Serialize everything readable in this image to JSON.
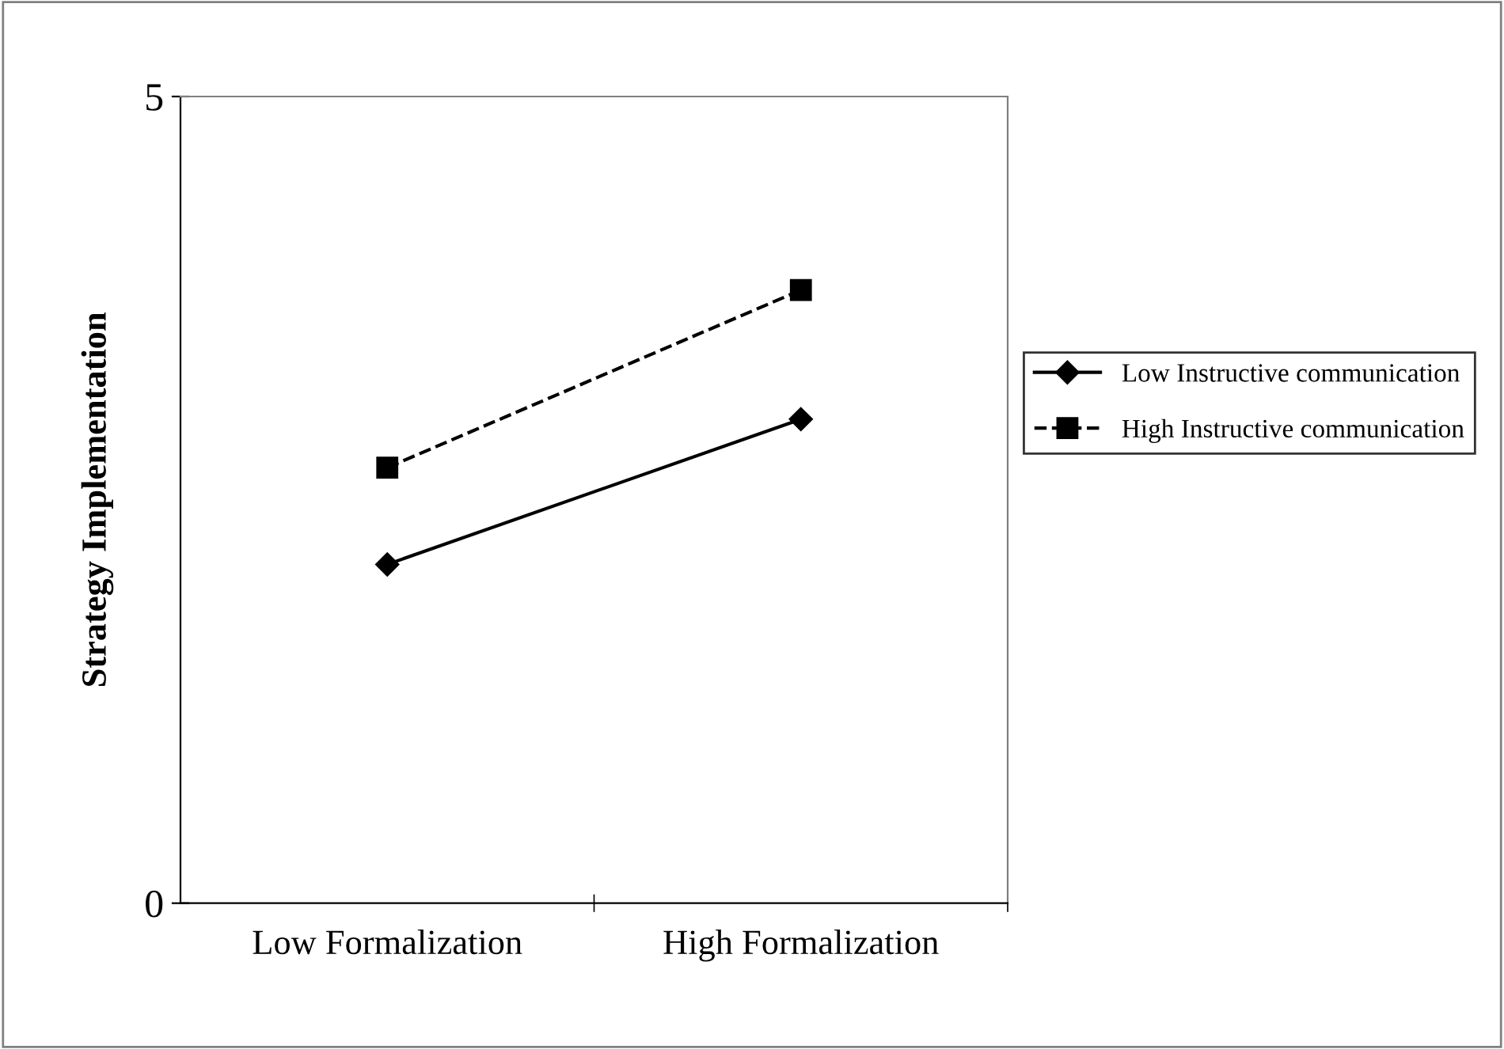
{
  "chart_data": {
    "type": "line",
    "ylabel": "Strategy Implementation",
    "categories": [
      "Low Formalization",
      "High Formalization"
    ],
    "series": [
      {
        "name": "Low Instructive communication",
        "color": "#000000",
        "values": [
          2.1,
          3.0
        ],
        "marker": "diamond",
        "line_style": "solid"
      },
      {
        "name": "High Instructive communication",
        "color": "#000000",
        "values": [
          2.7,
          3.8
        ],
        "marker": "square",
        "line_style": "dashed"
      }
    ],
    "ylim": [
      0,
      5
    ],
    "yticks": [
      0,
      5
    ],
    "grid": false,
    "legend": "right"
  }
}
